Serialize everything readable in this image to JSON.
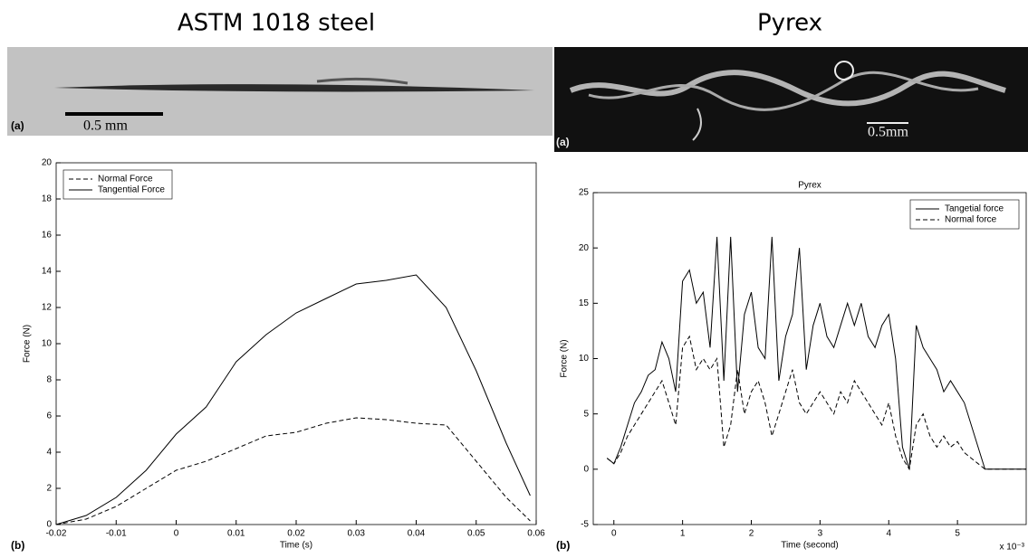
{
  "panels": [
    {
      "heading": "ASTM 1018 steel",
      "photo_label": "(a)",
      "scale_label": "0.5 mm",
      "chart_label": "(b)"
    },
    {
      "heading": "Pyrex",
      "photo_label": "(a)",
      "scale_label": "0.5mm",
      "chart_label": "(b)"
    }
  ],
  "chart_data": [
    {
      "type": "line",
      "x_label": "Time (s)",
      "y_label": "Force (N)",
      "x": [
        -0.02,
        -0.015,
        -0.01,
        -0.005,
        0,
        0.005,
        0.01,
        0.015,
        0.02,
        0.025,
        0.03,
        0.035,
        0.04,
        0.045,
        0.05,
        0.055,
        0.059
      ],
      "series": [
        {
          "name": "Normal Force",
          "color": "#000000",
          "style": "dashed",
          "values": [
            0,
            0.3,
            1,
            2,
            3,
            3.5,
            4.2,
            4.9,
            5.1,
            5.6,
            5.9,
            5.8,
            5.6,
            5.5,
            3.5,
            1.5,
            0.2
          ]
        },
        {
          "name": "Tangential Force",
          "color": "#000000",
          "style": "solid",
          "values": [
            0,
            0.5,
            1.5,
            3,
            5,
            6.5,
            9,
            10.5,
            11.7,
            12.5,
            13.3,
            13.5,
            13.8,
            12,
            8.5,
            4.5,
            1.6
          ]
        }
      ],
      "xlim": [
        -0.02,
        0.06
      ],
      "xticks": [
        -0.02,
        -0.01,
        0,
        0.01,
        0.02,
        0.03,
        0.04,
        0.05,
        0.06
      ],
      "ylim": [
        0,
        20
      ],
      "yticks": [
        0,
        2,
        4,
        6,
        8,
        10,
        12,
        14,
        16,
        18,
        20
      ],
      "legend": "upper left"
    },
    {
      "type": "line",
      "title": "Pyrex",
      "x_label": "Time (second)",
      "y_label": "Force (N)",
      "x_multiplier": "x 10⁻³",
      "x": [
        -0.1,
        0,
        0.1,
        0.2,
        0.3,
        0.4,
        0.5,
        0.6,
        0.7,
        0.8,
        0.9,
        1.0,
        1.1,
        1.2,
        1.3,
        1.4,
        1.5,
        1.6,
        1.7,
        1.8,
        1.9,
        2.0,
        2.1,
        2.2,
        2.3,
        2.4,
        2.5,
        2.6,
        2.7,
        2.8,
        2.9,
        3.0,
        3.1,
        3.2,
        3.3,
        3.4,
        3.5,
        3.6,
        3.7,
        3.8,
        3.9,
        4.0,
        4.1,
        4.2,
        4.3,
        4.4,
        4.5,
        4.6,
        4.7,
        4.8,
        4.9,
        5.0,
        5.1,
        5.2,
        5.3,
        5.4,
        5.5,
        5.6,
        5.7,
        5.8,
        5.9,
        6.0
      ],
      "series": [
        {
          "name": "Tangetial force",
          "color": "#000000",
          "style": "solid",
          "values": [
            1,
            0.5,
            2,
            4,
            6,
            7,
            8.5,
            9,
            11.5,
            10,
            7,
            17,
            18,
            15,
            16,
            11,
            21,
            8,
            21,
            7,
            14,
            16,
            11,
            10,
            21,
            8,
            12,
            14,
            20,
            9,
            13,
            15,
            12,
            11,
            13,
            15,
            13,
            15,
            12,
            11,
            13,
            14,
            10,
            2,
            0,
            13,
            11,
            10,
            9,
            7,
            8,
            7,
            6,
            4,
            2,
            0,
            0,
            0,
            0,
            0,
            0,
            0
          ]
        },
        {
          "name": "Normal force",
          "color": "#000000",
          "style": "dashed",
          "values": [
            1,
            0.5,
            1.5,
            3,
            4,
            5,
            6,
            7,
            8,
            6,
            4,
            11,
            12,
            9,
            10,
            9,
            10,
            2,
            4,
            9,
            5,
            7,
            8,
            6,
            3,
            5,
            7,
            9,
            6,
            5,
            6,
            7,
            6,
            5,
            7,
            6,
            8,
            7,
            6,
            5,
            4,
            6,
            3,
            1,
            0,
            4,
            5,
            3,
            2,
            3,
            2,
            2.5,
            1.5,
            1,
            0.5,
            0,
            0,
            0,
            0,
            0,
            0,
            0
          ]
        }
      ],
      "xlim": [
        -0.3,
        6
      ],
      "xticks": [
        0,
        1,
        2,
        3,
        4,
        5
      ],
      "ylim": [
        -5,
        25
      ],
      "yticks": [
        -5,
        0,
        5,
        10,
        15,
        20,
        25
      ],
      "legend": "upper right"
    }
  ]
}
